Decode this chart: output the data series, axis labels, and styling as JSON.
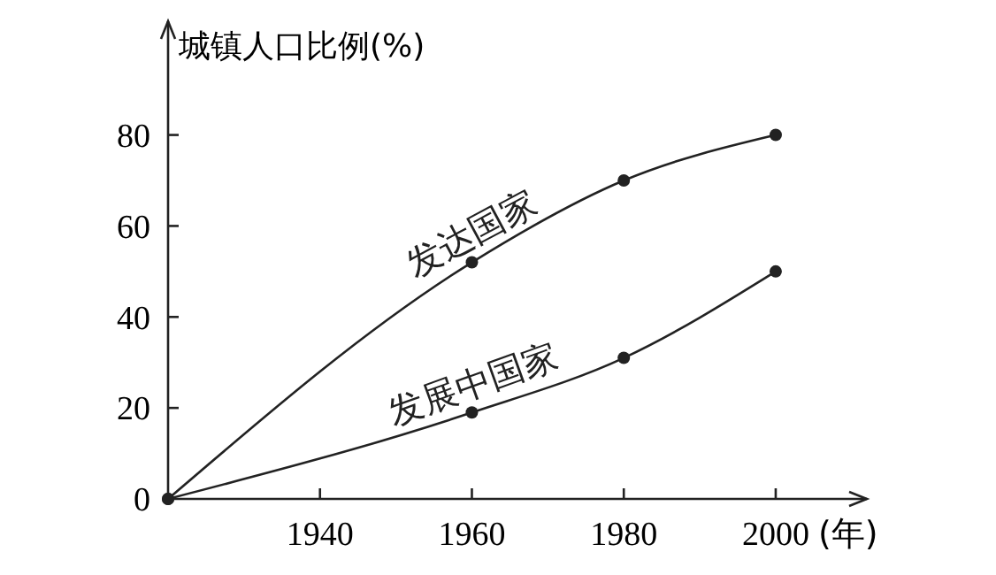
{
  "chart_data": {
    "type": "line",
    "ylabel": "城镇人口比例(%)",
    "xlabel": "(年)",
    "x": [
      1920,
      1960,
      1980,
      2000
    ],
    "xlim": [
      1920,
      2012
    ],
    "xticks": [
      1940,
      1960,
      1980,
      2000
    ],
    "ylim": [
      0,
      105
    ],
    "yticks": [
      0,
      20,
      40,
      60,
      80
    ],
    "marker": "circle",
    "line_style": "solid",
    "grid": false,
    "legend": false,
    "series": [
      {
        "name": "发达国家",
        "color": "#222222",
        "values": [
          0,
          52,
          70,
          80
        ]
      },
      {
        "name": "发展中国家",
        "color": "#222222",
        "values": [
          0,
          19,
          31,
          50
        ]
      }
    ]
  }
}
